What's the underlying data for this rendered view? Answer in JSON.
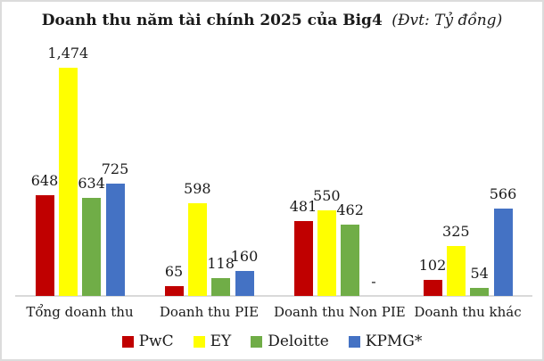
{
  "title": {
    "main": "Doanh thu năm tài chính 2025 của Big4",
    "unit": "(Đvt: Tỷ đồng)"
  },
  "colors": {
    "pwc": "#C00000",
    "ey": "#FFFF00",
    "deloitte": "#70AD47",
    "kpmg": "#4472C4",
    "axis_line": "#D9D9D9",
    "frame_border": "#DCDCDC",
    "text": "#1A1A1A"
  },
  "chart_data": {
    "type": "bar",
    "title": "Doanh thu năm tài chính 2025 của Big4 (Đvt: Tỷ đồng)",
    "categories": [
      "Tổng doanh thu",
      "Doanh thu PIE",
      "Doanh thu Non PIE",
      "Doanh thu khác"
    ],
    "series": [
      {
        "name": "PwC",
        "color": "#C00000",
        "values": [
          648,
          65,
          481,
          102
        ],
        "labels": [
          "648",
          "65",
          "481",
          "102"
        ]
      },
      {
        "name": "EY",
        "color": "#FFFF00",
        "values": [
          1474,
          598,
          550,
          325
        ],
        "labels": [
          "1,474",
          "598",
          "550",
          "325"
        ]
      },
      {
        "name": "Deloitte",
        "color": "#70AD47",
        "values": [
          634,
          118,
          462,
          54
        ],
        "labels": [
          "634",
          "118",
          "462",
          "54"
        ]
      },
      {
        "name": "KPMG*",
        "color": "#4472C4",
        "values": [
          725,
          160,
          null,
          566
        ],
        "labels": [
          "725",
          "160",
          "-",
          "566"
        ]
      }
    ],
    "ylim": [
      0,
      1474
    ],
    "grid": false,
    "y_axis_visible": false,
    "legend_position": "bottom",
    "data_labels": true
  }
}
